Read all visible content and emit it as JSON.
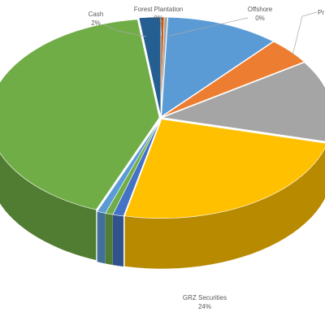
{
  "chart_data": {
    "type": "pie",
    "style": "3d-exploded",
    "slices": [
      {
        "label": "Forest Plantation",
        "pct_label": "0%",
        "value": 0.3,
        "color": "#c55a11"
      },
      {
        "label": "Offshore",
        "pct_label": "0%",
        "value": 0.3,
        "color": "#a5a5a5"
      },
      {
        "label": "",
        "pct_label": "",
        "value": 10.5,
        "color": "#5b9bd5"
      },
      {
        "label": "",
        "pct_label": "",
        "value": 4.2,
        "color": "#ed7d31"
      },
      {
        "label": "",
        "pct_label": "",
        "value": 13.0,
        "color": "#a5a5a5"
      },
      {
        "label": "GRZ Securities",
        "pct_label": "24%",
        "value": 24.0,
        "color": "#ffc000"
      },
      {
        "label": "",
        "pct_label": "",
        "value": 1.0,
        "color": "#4472c4"
      },
      {
        "label": "",
        "pct_label": "",
        "value": 0.7,
        "color": "#70ad47"
      },
      {
        "label": "",
        "pct_label": "",
        "value": 0.8,
        "color": "#5b9bd5"
      },
      {
        "label": "",
        "pct_label": "",
        "value": 41.0,
        "color": "#70ad47"
      },
      {
        "label": "Cash",
        "pct_label": "2%",
        "value": 2.0,
        "color": "#255e91"
      }
    ],
    "partial_labels": [
      {
        "text": "Pr",
        "note": "label cut off at right edge"
      }
    ],
    "legend": "none"
  }
}
